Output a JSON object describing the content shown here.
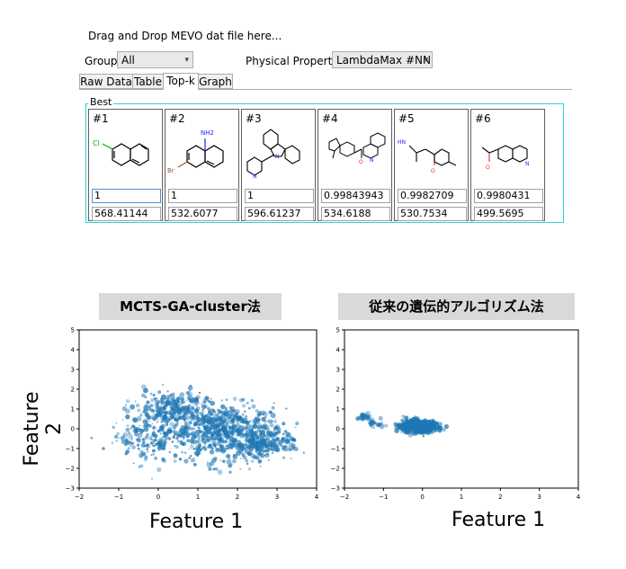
{
  "drop_hint": "Drag and Drop MEVO dat file here...",
  "group_label": "Group",
  "group_value": "All",
  "property_label": "Physical Property",
  "property_value": "LambdaMax #NN",
  "tabs": [
    {
      "label": "Raw Data"
    },
    {
      "label": "Table"
    },
    {
      "label": "Top-k"
    },
    {
      "label": "Graph"
    }
  ],
  "active_tab": "Top-k",
  "best_label": "Best",
  "cards": [
    {
      "rank": "#1",
      "v1": "1",
      "v2": "568.41144"
    },
    {
      "rank": "#2",
      "v1": "1",
      "v2": "532.6077"
    },
    {
      "rank": "#3",
      "v1": "1",
      "v2": "596.61237"
    },
    {
      "rank": "#4",
      "v1": "0.99843943",
      "v2": "534.6188"
    },
    {
      "rank": "#5",
      "v1": "0.9982709",
      "v2": "530.7534"
    },
    {
      "rank": "#6",
      "v1": "0.9980431",
      "v2": "499.5695"
    }
  ],
  "atom_labels": {
    "cl": "Cl",
    "br": "Br",
    "nh2": "NH2",
    "n": "N",
    "o": "O",
    "hn": "HN"
  },
  "colors": {
    "scatter": "#1f77b4",
    "group_border": "#2fd4d4",
    "title_bg": "#d9d9d9"
  },
  "plots": {
    "left_title": "MCTS-GA-cluster法",
    "right_title": "従来の遺伝的アルゴリズム法",
    "ylabel": "Feature 2",
    "left_xlabel": "Feature 1",
    "right_xlabel": "Feature 1",
    "xticks": [
      "−2",
      "−1",
      "0",
      "1",
      "2",
      "3",
      "4"
    ],
    "yticks": [
      "5",
      "4",
      "3",
      "2",
      "1",
      "0",
      "−1",
      "−2",
      "−3"
    ]
  },
  "chart_data": [
    {
      "type": "scatter",
      "title": "MCTS-GA-cluster法",
      "xlabel": "Feature 1",
      "ylabel": "Feature 2",
      "xlim": [
        -2,
        4
      ],
      "ylim": [
        -3,
        5
      ],
      "clusters": [
        {
          "cx": 1.7,
          "cy": -0.2,
          "sx": 0.75,
          "sy": 0.7,
          "n": 700
        },
        {
          "cx": 0.3,
          "cy": 1.0,
          "sx": 0.45,
          "sy": 0.45,
          "n": 260
        },
        {
          "cx": 2.7,
          "cy": -0.9,
          "sx": 0.35,
          "sy": 0.3,
          "n": 160
        },
        {
          "cx": -0.2,
          "cy": -0.5,
          "sx": 0.55,
          "sy": 0.6,
          "n": 150
        }
      ]
    },
    {
      "type": "scatter",
      "title": "従来の遺伝的アルゴリズム法",
      "xlabel": "Feature 1",
      "ylabel": "",
      "xlim": [
        -2,
        4
      ],
      "ylim": [
        -3,
        5
      ],
      "clusters": [
        {
          "cx": -0.1,
          "cy": 0.1,
          "sx": 0.2,
          "sy": 0.15,
          "n": 900
        },
        {
          "cx": -1.5,
          "cy": 0.6,
          "sx": 0.1,
          "sy": 0.08,
          "n": 25
        },
        {
          "cx": -1.2,
          "cy": 0.3,
          "sx": 0.15,
          "sy": 0.12,
          "n": 25
        }
      ]
    }
  ]
}
